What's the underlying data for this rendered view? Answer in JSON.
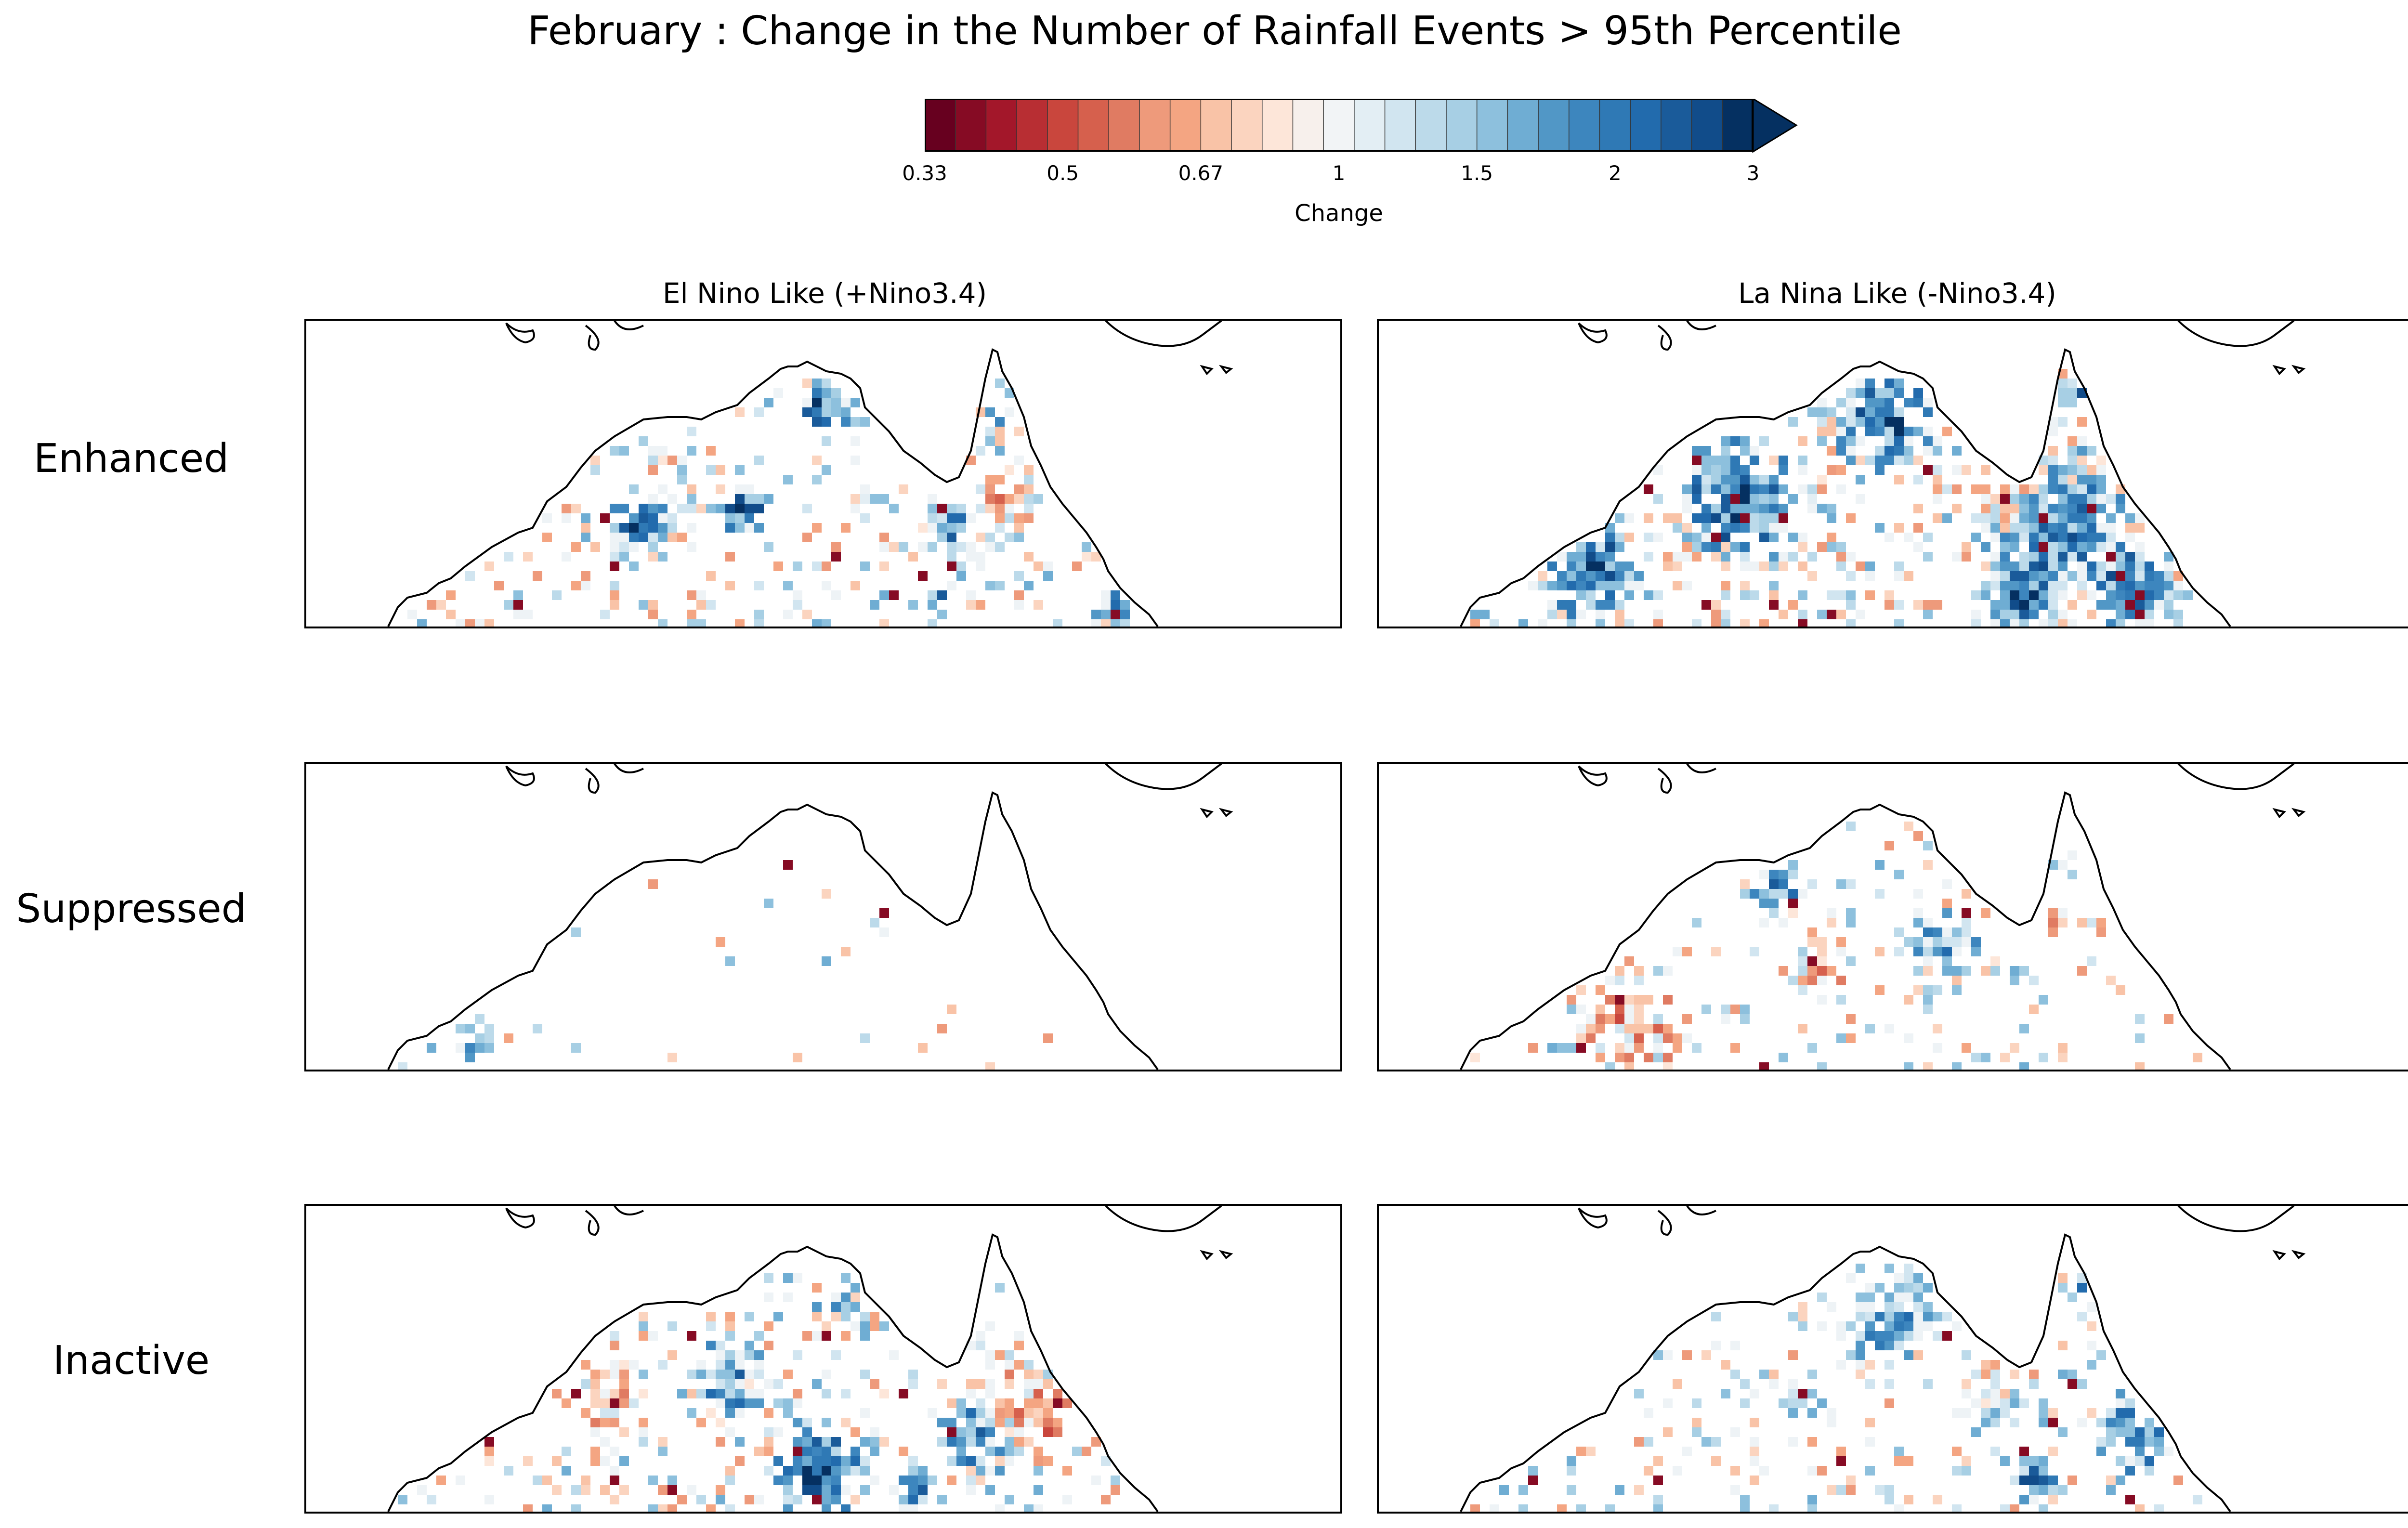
{
  "chart_data": {
    "type": "heatmap",
    "title": "February : Change in the Number of Rainfall Events > 95th Percentile",
    "colorbar": {
      "label": "Change",
      "ticks": [
        "0.33",
        "0.5",
        "0.67",
        "1",
        "1.5",
        "2",
        "3"
      ],
      "colors": [
        "#67001f",
        "#860b24",
        "#a3172a",
        "#b82e33",
        "#c9463d",
        "#d6604d",
        "#e07b62",
        "#ee9a7b",
        "#f4a582",
        "#f9c3a7",
        "#fbd4bf",
        "#fde6d9",
        "#f7f0ec",
        "#f2f4f6",
        "#e3eef4",
        "#d1e5f0",
        "#bcdaea",
        "#a7cfe4",
        "#8dc0dd",
        "#6fadd3",
        "#5197c6",
        "#3d86be",
        "#2f79b5",
        "#226bad",
        "#1a5b9a",
        "#114c8a",
        "#053061"
      ],
      "extend": "max"
    },
    "columns": [
      "El Nino Like (+Nino3.4)",
      "La Nina Like (-Nino3.4)"
    ],
    "rows": [
      "Enhanced",
      "Suppressed",
      "Inactive"
    ]
  }
}
